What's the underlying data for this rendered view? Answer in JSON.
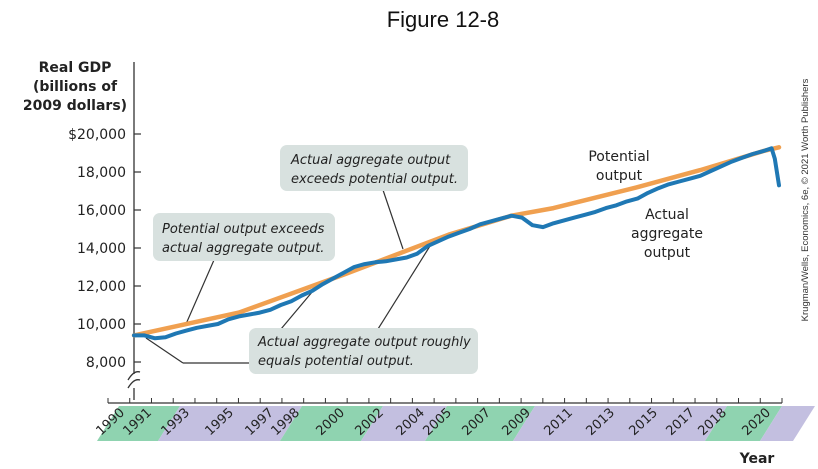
{
  "figure_title": "Figure 12-8",
  "credit": "Krugman/Wells, Economics, 6e, © 2021 Worth Publishers",
  "colors": {
    "actual": "#1f78b4",
    "potential": "#f0a050",
    "callout_fill": "#d8e1df",
    "band_green": "#8fd3b0",
    "band_purple": "#c3bfe0"
  },
  "chart_data": {
    "type": "line",
    "ylabel_lines": [
      "Real GDP",
      "(billions of",
      "2009 dollars)"
    ],
    "xlabel": "Year",
    "ylim": [
      8000,
      20000
    ],
    "xlim": [
      1990,
      2020.8
    ],
    "axis_break": true,
    "grid": false,
    "yticks": [
      {
        "value": 20000,
        "label": "$20,000"
      },
      {
        "value": 18000,
        "label": "18,000"
      },
      {
        "value": 16000,
        "label": "16,000"
      },
      {
        "value": 14000,
        "label": "14,000"
      },
      {
        "value": 12000,
        "label": "12,000"
      },
      {
        "value": 10000,
        "label": "10,000"
      },
      {
        "value": 8000,
        "label": "8,000"
      }
    ],
    "xticks": [
      "1990",
      "1991",
      "1993",
      "1995",
      "1997",
      "1998",
      "2000",
      "2002",
      "2004",
      "2005",
      "2007",
      "2009",
      "2011",
      "2013",
      "2015",
      "2017",
      "2018",
      "2020"
    ],
    "series": [
      {
        "name": "Potential output",
        "label_lines": [
          "Potential",
          "output"
        ],
        "points": [
          [
            1990,
            9400
          ],
          [
            1995,
            10600
          ],
          [
            2000,
            12600
          ],
          [
            2005,
            14700
          ],
          [
            2008,
            15700
          ],
          [
            2010,
            16100
          ],
          [
            2014,
            17200
          ],
          [
            2017,
            18100
          ],
          [
            2020,
            19100
          ],
          [
            2020.75,
            19300
          ]
        ]
      },
      {
        "name": "Actual aggregate output",
        "label_lines": [
          "Actual",
          "aggregate",
          "output"
        ],
        "points": [
          [
            1990,
            9400
          ],
          [
            1990.5,
            9400
          ],
          [
            1991,
            9250
          ],
          [
            1991.5,
            9300
          ],
          [
            1992,
            9500
          ],
          [
            1992.5,
            9650
          ],
          [
            1993,
            9800
          ],
          [
            1993.5,
            9900
          ],
          [
            1994,
            10000
          ],
          [
            1994.5,
            10250
          ],
          [
            1995,
            10400
          ],
          [
            1995.5,
            10500
          ],
          [
            1996,
            10600
          ],
          [
            1996.5,
            10750
          ],
          [
            1997,
            11000
          ],
          [
            1997.5,
            11200
          ],
          [
            1998,
            11500
          ],
          [
            1998.5,
            11750
          ],
          [
            1999,
            12100
          ],
          [
            1999.5,
            12400
          ],
          [
            2000,
            12700
          ],
          [
            2000.5,
            13000
          ],
          [
            2001,
            13150
          ],
          [
            2001.5,
            13250
          ],
          [
            2002,
            13300
          ],
          [
            2002.5,
            13400
          ],
          [
            2003,
            13500
          ],
          [
            2003.5,
            13700
          ],
          [
            2004,
            14100
          ],
          [
            2004.5,
            14350
          ],
          [
            2005,
            14600
          ],
          [
            2005.5,
            14800
          ],
          [
            2006,
            15000
          ],
          [
            2006.5,
            15250
          ],
          [
            2007,
            15400
          ],
          [
            2007.5,
            15550
          ],
          [
            2008,
            15700
          ],
          [
            2008.5,
            15600
          ],
          [
            2009,
            15200
          ],
          [
            2009.5,
            15100
          ],
          [
            2010,
            15300
          ],
          [
            2010.5,
            15450
          ],
          [
            2011,
            15600
          ],
          [
            2011.5,
            15750
          ],
          [
            2012,
            15900
          ],
          [
            2012.5,
            16100
          ],
          [
            2013,
            16250
          ],
          [
            2013.5,
            16450
          ],
          [
            2014,
            16600
          ],
          [
            2014.5,
            16900
          ],
          [
            2015,
            17150
          ],
          [
            2015.5,
            17350
          ],
          [
            2016,
            17500
          ],
          [
            2016.5,
            17650
          ],
          [
            2017,
            17800
          ],
          [
            2017.5,
            18050
          ],
          [
            2018,
            18300
          ],
          [
            2018.5,
            18550
          ],
          [
            2019,
            18750
          ],
          [
            2019.5,
            18950
          ],
          [
            2020,
            19100
          ],
          [
            2020.4,
            19250
          ],
          [
            2020.55,
            18700
          ],
          [
            2020.75,
            17300
          ]
        ]
      }
    ],
    "annotations": [
      {
        "lines": [
          "Actual aggregate output",
          "exceeds potential output."
        ]
      },
      {
        "lines": [
          "Potential output exceeds",
          "actual aggregate output."
        ]
      },
      {
        "lines": [
          "Actual aggregate output roughly",
          "equals potential output."
        ]
      }
    ]
  }
}
